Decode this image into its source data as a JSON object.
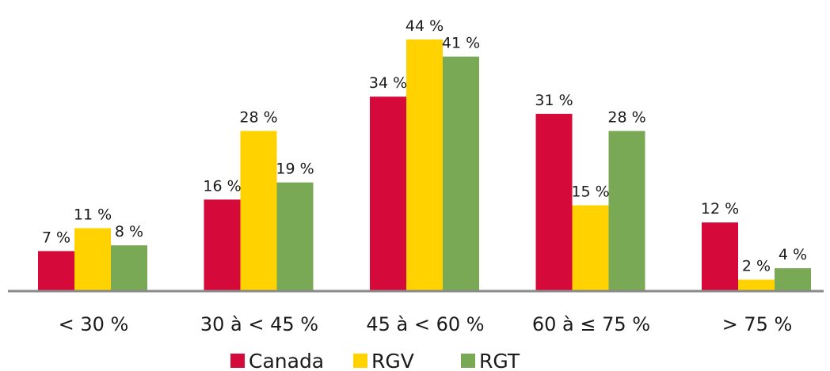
{
  "chart_data": {
    "type": "bar",
    "categories": [
      "< 30 %",
      "30 à < 45 %",
      "45 à < 60 %",
      "60 à ≤ 75 %",
      "> 75 %"
    ],
    "series": [
      {
        "name": "Canada",
        "color": "#d6093b",
        "values": [
          7,
          16,
          34,
          31,
          12
        ],
        "labels": [
          "7 %",
          "16 %",
          "34 %",
          "31 %",
          "12 %"
        ]
      },
      {
        "name": "RGV",
        "color": "#ffd200",
        "values": [
          11,
          28,
          44,
          15,
          2
        ],
        "labels": [
          "11 %",
          "28 %",
          "44 %",
          "15 %",
          "2 %"
        ]
      },
      {
        "name": "RGT",
        "color": "#79a954",
        "values": [
          8,
          19,
          41,
          28,
          4
        ],
        "labels": [
          "8 %",
          "19 %",
          "41 %",
          "28 %",
          "4 %"
        ]
      }
    ],
    "ylim": [
      0,
      50
    ],
    "grid": false,
    "legend_position": "bottom"
  }
}
